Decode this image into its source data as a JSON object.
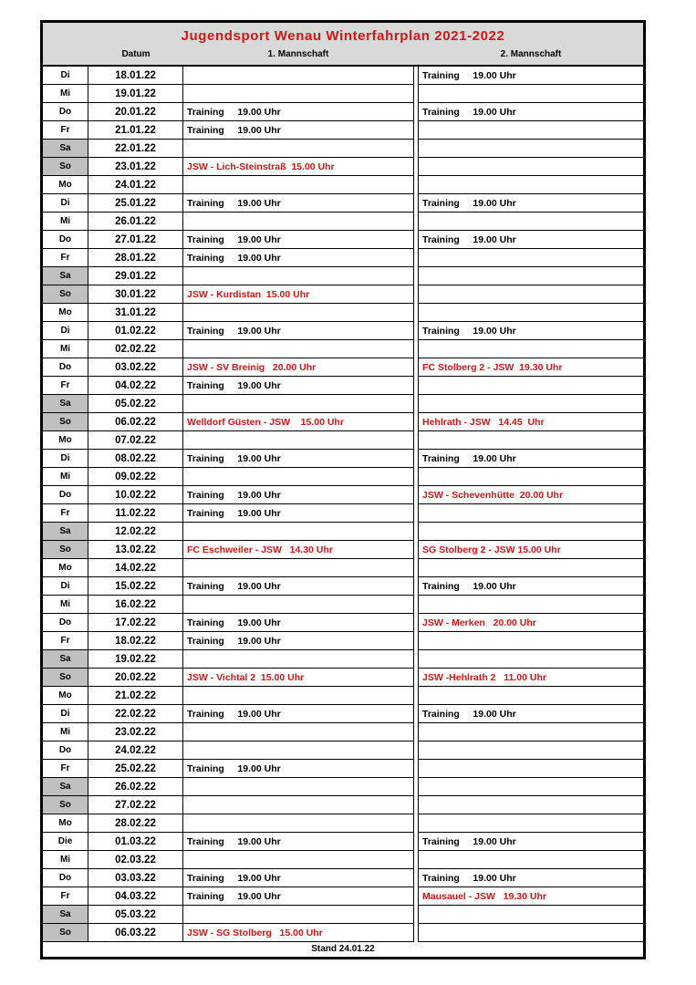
{
  "title": "Jugendsport Wenau Winterfahrplan 2021-2022",
  "columns": {
    "datum": "Datum",
    "mannschaft1": "1. Mannschaft",
    "mannschaft2": "2. Mannschaft"
  },
  "footer": "Stand 24.01.22",
  "colors": {
    "accent_red": "#d81414",
    "header_bg": "#d9d9d9",
    "weekend_bg": "#c0c0c0"
  },
  "rows": [
    {
      "day": "Di",
      "date": "18.01.22",
      "weekend": false,
      "m1": "",
      "m1_red": false,
      "m2": "Training     19.00 Uhr",
      "m2_red": false
    },
    {
      "day": "Mi",
      "date": "19.01.22",
      "weekend": false,
      "m1": "",
      "m1_red": false,
      "m2": "",
      "m2_red": false
    },
    {
      "day": "Do",
      "date": "20.01.22",
      "weekend": false,
      "m1": "Training     19.00 Uhr",
      "m1_red": false,
      "m2": "Training     19.00 Uhr",
      "m2_red": false
    },
    {
      "day": "Fr",
      "date": "21.01.22",
      "weekend": false,
      "m1": "Training     19.00 Uhr",
      "m1_red": false,
      "m2": "",
      "m2_red": false
    },
    {
      "day": "Sa",
      "date": "22.01.22",
      "weekend": true,
      "m1": "",
      "m1_red": false,
      "m2": "",
      "m2_red": false
    },
    {
      "day": "So",
      "date": "23.01.22",
      "weekend": true,
      "m1": "JSW - Lich-Steinstraß  15.00 Uhr",
      "m1_red": true,
      "m2": "",
      "m2_red": false
    },
    {
      "day": "Mo",
      "date": "24.01.22",
      "weekend": false,
      "m1": "",
      "m1_red": false,
      "m2": "",
      "m2_red": false
    },
    {
      "day": "Di",
      "date": "25.01.22",
      "weekend": false,
      "m1": "Training     19.00 Uhr",
      "m1_red": false,
      "m2": "Training     19.00 Uhr",
      "m2_red": false
    },
    {
      "day": "Mi",
      "date": "26.01.22",
      "weekend": false,
      "m1": "",
      "m1_red": false,
      "m2": "",
      "m2_red": false
    },
    {
      "day": "Do",
      "date": "27.01.22",
      "weekend": false,
      "m1": "Training     19.00 Uhr",
      "m1_red": false,
      "m2": "Training     19.00 Uhr",
      "m2_red": false
    },
    {
      "day": "Fr",
      "date": "28.01.22",
      "weekend": false,
      "m1": "Training     19.00 Uhr",
      "m1_red": false,
      "m2": "",
      "m2_red": false
    },
    {
      "day": "Sa",
      "date": "29.01.22",
      "weekend": true,
      "m1": "",
      "m1_red": false,
      "m2": "",
      "m2_red": false
    },
    {
      "day": "So",
      "date": "30.01.22",
      "weekend": true,
      "m1": "JSW - Kurdistan  15.00 Uhr",
      "m1_red": true,
      "m2": "",
      "m2_red": false
    },
    {
      "day": "Mo",
      "date": "31.01.22",
      "weekend": false,
      "m1": "",
      "m1_red": false,
      "m2": "",
      "m2_red": false
    },
    {
      "day": "Di",
      "date": "01.02.22",
      "weekend": false,
      "m1": "Training     19.00 Uhr",
      "m1_red": false,
      "m2": "Training     19.00 Uhr",
      "m2_red": false
    },
    {
      "day": "Mi",
      "date": "02.02.22",
      "weekend": false,
      "m1": "",
      "m1_red": false,
      "m2": "",
      "m2_red": false
    },
    {
      "day": "Do",
      "date": "03.02.22",
      "weekend": false,
      "m1": "JSW - SV Breinig   20.00 Uhr",
      "m1_red": true,
      "m2": "FC Stolberg 2 - JSW  19.30 Uhr",
      "m2_red": true
    },
    {
      "day": "Fr",
      "date": "04.02.22",
      "weekend": false,
      "m1": "Training     19.00 Uhr",
      "m1_red": false,
      "m2": "",
      "m2_red": false
    },
    {
      "day": "Sa",
      "date": "05.02.22",
      "weekend": true,
      "m1": "",
      "m1_red": false,
      "m2": "",
      "m2_red": false
    },
    {
      "day": "So",
      "date": "06.02.22",
      "weekend": true,
      "m1": "Welldorf Güsten - JSW    15.00 Uhr",
      "m1_red": true,
      "m2": "Hehlrath - JSW   14.45  Uhr",
      "m2_red": true
    },
    {
      "day": "Mo",
      "date": "07.02.22",
      "weekend": false,
      "m1": "",
      "m1_red": false,
      "m2": "",
      "m2_red": false
    },
    {
      "day": "Di",
      "date": "08.02.22",
      "weekend": false,
      "m1": "Training     19.00 Uhr",
      "m1_red": false,
      "m2": "Training     19.00 Uhr",
      "m2_red": false
    },
    {
      "day": "Mi",
      "date": "09.02.22",
      "weekend": false,
      "m1": "",
      "m1_red": false,
      "m2": "",
      "m2_red": false
    },
    {
      "day": "Do",
      "date": "10.02.22",
      "weekend": false,
      "m1": "Training     19.00 Uhr",
      "m1_red": false,
      "m2": "JSW - Schevenhütte  20.00 Uhr",
      "m2_red": true
    },
    {
      "day": "Fr",
      "date": "11.02.22",
      "weekend": false,
      "m1": "Training     19.00 Uhr",
      "m1_red": false,
      "m2": "",
      "m2_red": false
    },
    {
      "day": "Sa",
      "date": "12.02.22",
      "weekend": true,
      "m1": "",
      "m1_red": false,
      "m2": "",
      "m2_red": false
    },
    {
      "day": "So",
      "date": "13.02.22",
      "weekend": true,
      "m1": "FC Eschweiler - JSW   14.30 Uhr",
      "m1_red": true,
      "m2": "SG Stolberg 2 - JSW 15.00 Uhr",
      "m2_red": true
    },
    {
      "day": "Mo",
      "date": "14.02.22",
      "weekend": false,
      "m1": "",
      "m1_red": false,
      "m2": "",
      "m2_red": false
    },
    {
      "day": "Di",
      "date": "15.02.22",
      "weekend": false,
      "m1": "Training     19.00 Uhr",
      "m1_red": false,
      "m2": "Training     19.00 Uhr",
      "m2_red": false
    },
    {
      "day": "Mi",
      "date": "16.02.22",
      "weekend": false,
      "m1": "",
      "m1_red": false,
      "m2": "",
      "m2_red": false
    },
    {
      "day": "Do",
      "date": "17.02.22",
      "weekend": false,
      "m1": "Training     19.00 Uhr",
      "m1_red": false,
      "m2": "JSW - Merken   20.00 Uhr",
      "m2_red": true
    },
    {
      "day": "Fr",
      "date": "18.02.22",
      "weekend": false,
      "m1": "Training     19.00 Uhr",
      "m1_red": false,
      "m2": "",
      "m2_red": false
    },
    {
      "day": "Sa",
      "date": "19.02.22",
      "weekend": true,
      "m1": "",
      "m1_red": false,
      "m2": "",
      "m2_red": false
    },
    {
      "day": "So",
      "date": "20.02.22",
      "weekend": true,
      "m1": "JSW - Vichtal 2  15.00 Uhr",
      "m1_red": true,
      "m2": "JSW -Hehlrath 2   11.00 Uhr",
      "m2_red": true
    },
    {
      "day": "Mo",
      "date": "21.02.22",
      "weekend": false,
      "m1": "",
      "m1_red": false,
      "m2": "",
      "m2_red": false
    },
    {
      "day": "Di",
      "date": "22.02.22",
      "weekend": false,
      "m1": "Training     19.00 Uhr",
      "m1_red": false,
      "m2": "Training     19.00 Uhr",
      "m2_red": false
    },
    {
      "day": "Mi",
      "date": "23.02.22",
      "weekend": false,
      "m1": "",
      "m1_red": false,
      "m2": "",
      "m2_red": false
    },
    {
      "day": "Do",
      "date": "24.02.22",
      "weekend": false,
      "m1": "",
      "m1_red": false,
      "m2": "",
      "m2_red": false
    },
    {
      "day": "Fr",
      "date": "25.02.22",
      "weekend": false,
      "m1": "Training     19.00 Uhr",
      "m1_red": false,
      "m2": "",
      "m2_red": false
    },
    {
      "day": "Sa",
      "date": "26.02.22",
      "weekend": true,
      "m1": "",
      "m1_red": false,
      "m2": "",
      "m2_red": false
    },
    {
      "day": "So",
      "date": "27.02.22",
      "weekend": true,
      "m1": "",
      "m1_red": false,
      "m2": "",
      "m2_red": false
    },
    {
      "day": "Mo",
      "date": "28.02.22",
      "weekend": false,
      "m1": "",
      "m1_red": false,
      "m2": "",
      "m2_red": false
    },
    {
      "day": "Die",
      "date": "01.03.22",
      "weekend": false,
      "m1": "Training     19.00 Uhr",
      "m1_red": false,
      "m2": "Training     19.00 Uhr",
      "m2_red": false
    },
    {
      "day": "Mi",
      "date": "02.03.22",
      "weekend": false,
      "m1": "",
      "m1_red": false,
      "m2": "",
      "m2_red": false
    },
    {
      "day": "Do",
      "date": "03.03.22",
      "weekend": false,
      "m1": "Training     19.00 Uhr",
      "m1_red": false,
      "m2": "Training     19.00 Uhr",
      "m2_red": false
    },
    {
      "day": "Fr",
      "date": "04.03.22",
      "weekend": false,
      "m1": "Training     19.00 Uhr",
      "m1_red": false,
      "m2": "Mausauel - JSW   19.30 Uhr",
      "m2_red": true
    },
    {
      "day": "Sa",
      "date": "05.03.22",
      "weekend": true,
      "m1": "",
      "m1_red": false,
      "m2": "",
      "m2_red": false
    },
    {
      "day": "So",
      "date": "06.03.22",
      "weekend": true,
      "m1": "JSW - SG Stolberg   15.00 Uhr",
      "m1_red": true,
      "m2": "",
      "m2_red": false
    }
  ]
}
